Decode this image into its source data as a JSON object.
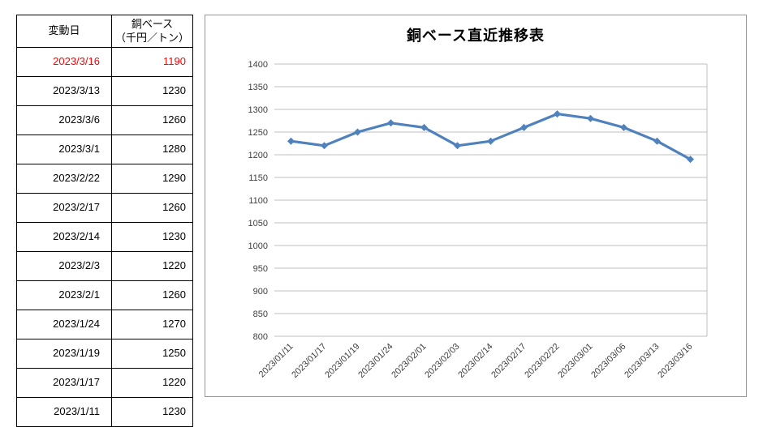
{
  "table": {
    "header_date": "変動日",
    "header_price_line1": "銅ベース",
    "header_price_line2": "（千円／トン）",
    "highlight_color": "#FF0000",
    "rows": [
      {
        "date": "2023/3/16",
        "value": "1190",
        "highlight": true
      },
      {
        "date": "2023/3/13",
        "value": "1230",
        "highlight": false
      },
      {
        "date": "2023/3/6",
        "value": "1260",
        "highlight": false
      },
      {
        "date": "2023/3/1",
        "value": "1280",
        "highlight": false
      },
      {
        "date": "2023/2/22",
        "value": "1290",
        "highlight": false
      },
      {
        "date": "2023/2/17",
        "value": "1260",
        "highlight": false
      },
      {
        "date": "2023/2/14",
        "value": "1230",
        "highlight": false
      },
      {
        "date": "2023/2/3",
        "value": "1220",
        "highlight": false
      },
      {
        "date": "2023/2/1",
        "value": "1260",
        "highlight": false
      },
      {
        "date": "2023/1/24",
        "value": "1270",
        "highlight": false
      },
      {
        "date": "2023/1/19",
        "value": "1250",
        "highlight": false
      },
      {
        "date": "2023/1/17",
        "value": "1220",
        "highlight": false
      },
      {
        "date": "2023/1/11",
        "value": "1230",
        "highlight": false
      }
    ]
  },
  "chart_data": {
    "type": "line",
    "title": "銅ベース直近推移表",
    "categories": [
      "2023/01/11",
      "2023/01/17",
      "2023/01/19",
      "2023/01/24",
      "2023/02/01",
      "2023/02/03",
      "2023/02/14",
      "2023/02/17",
      "2023/02/22",
      "2023/03/01",
      "2023/03/06",
      "2023/03/13",
      "2023/03/16"
    ],
    "values": [
      1230,
      1220,
      1250,
      1270,
      1260,
      1220,
      1230,
      1260,
      1290,
      1280,
      1260,
      1230,
      1190
    ],
    "xlabel": "",
    "ylabel": "",
    "ylim": [
      800,
      1400
    ],
    "ytick_step": 50,
    "grid": true,
    "legend": "none",
    "marker": "diamond",
    "line_color": "#4F81BD",
    "grid_color": "#BFBFBF"
  }
}
